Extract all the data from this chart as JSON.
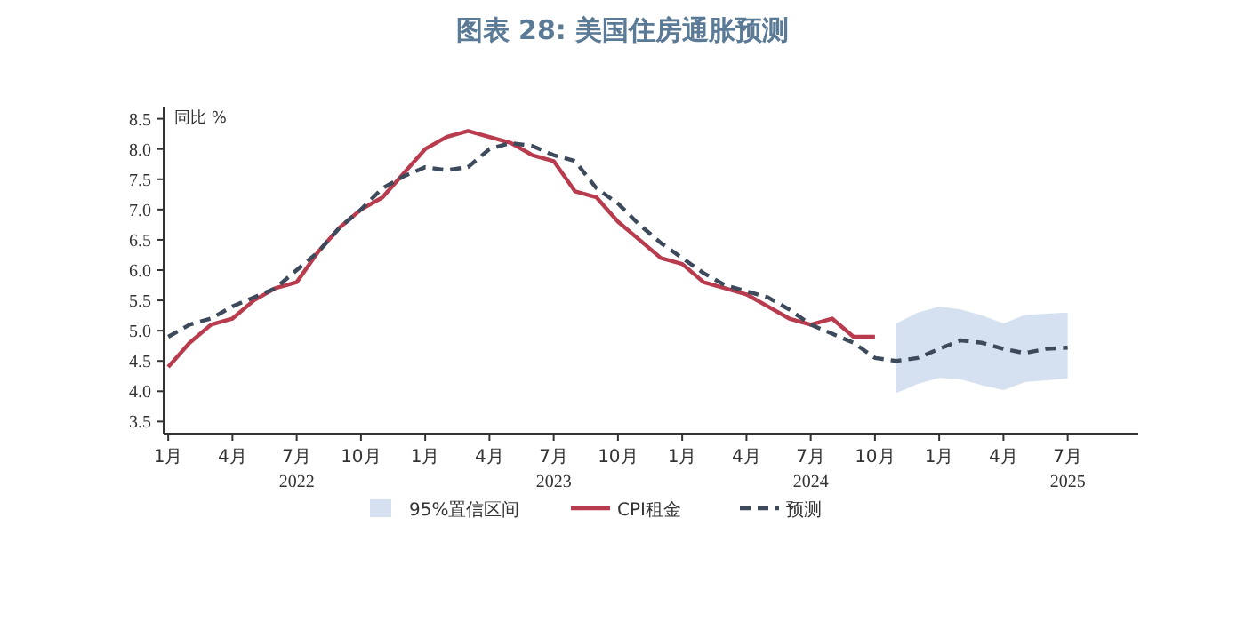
{
  "chart_data": {
    "type": "line",
    "title": "图表 28: 美国住房通胀预测",
    "ylabel": "同比 %",
    "xlim": [
      "2021-12-25",
      "2025-10-10"
    ],
    "ylim": [
      3.3,
      8.7
    ],
    "xticks": [
      {
        "value": "2022-01",
        "label": "1月"
      },
      {
        "value": "2022-04",
        "label": "4月"
      },
      {
        "value": "2022-07",
        "label": "7月"
      },
      {
        "value": "2022-10",
        "label": "10月"
      },
      {
        "value": "2023-01",
        "label": "1月"
      },
      {
        "value": "2023-04",
        "label": "4月"
      },
      {
        "value": "2023-07",
        "label": "7月"
      },
      {
        "value": "2023-10",
        "label": "10月"
      },
      {
        "value": "2024-01",
        "label": "1月"
      },
      {
        "value": "2024-04",
        "label": "4月"
      },
      {
        "value": "2024-07",
        "label": "7月"
      },
      {
        "value": "2024-10",
        "label": "10月"
      },
      {
        "value": "2025-01",
        "label": "1月"
      },
      {
        "value": "2025-04",
        "label": "4月"
      },
      {
        "value": "2025-07",
        "label": "7月"
      }
    ],
    "yticks": [
      {
        "value": 3.5,
        "label": "3.5"
      },
      {
        "value": 4,
        "label": "4.0"
      },
      {
        "value": 4.5,
        "label": "4.5"
      },
      {
        "value": 5,
        "label": "5.0"
      },
      {
        "value": 5.5,
        "label": "5.5"
      },
      {
        "value": 6,
        "label": "6.0"
      },
      {
        "value": 6.5,
        "label": "6.5"
      },
      {
        "value": 7,
        "label": "7.0"
      },
      {
        "value": 7.5,
        "label": "7.5"
      },
      {
        "value": 8,
        "label": "8.0"
      },
      {
        "value": 8.5,
        "label": "8.5"
      }
    ],
    "annotations": [
      "2022",
      "2023",
      "2024",
      "2025"
    ],
    "legend": "bottom",
    "grid": false,
    "series": [
      {
        "name": "95%置信区间",
        "type": "area",
        "color": "#d5e1f0",
        "x": [
          "2024-11",
          "2024-12",
          "2025-01",
          "2025-02",
          "2025-03",
          "2025-04",
          "2025-05",
          "2025-06",
          "2025-07"
        ],
        "values": [
          null,
          null,
          null,
          null,
          null,
          null,
          null,
          null,
          null
        ],
        "upper": [
          5.12,
          5.3,
          5.4,
          5.35,
          5.25,
          5.12,
          5.26,
          5.28,
          5.3
        ],
        "lower": [
          3.97,
          4.12,
          4.22,
          4.2,
          4.1,
          4.02,
          4.15,
          4.18,
          4.21
        ]
      },
      {
        "name": "CPI租金",
        "type": "line",
        "line_style": "solid",
        "color": "#b83b4e",
        "x": [
          "2022-01",
          "2022-02",
          "2022-03",
          "2022-04",
          "2022-05",
          "2022-06",
          "2022-07",
          "2022-08",
          "2022-09",
          "2022-10",
          "2022-11",
          "2022-12",
          "2023-01",
          "2023-02",
          "2023-03",
          "2023-04",
          "2023-05",
          "2023-06",
          "2023-07",
          "2023-08",
          "2023-09",
          "2023-10",
          "2023-11",
          "2023-12",
          "2024-01",
          "2024-02",
          "2024-03",
          "2024-04",
          "2024-05",
          "2024-06",
          "2024-07",
          "2024-08",
          "2024-09",
          "2024-10"
        ],
        "values": [
          4.4,
          4.8,
          5.1,
          5.2,
          5.5,
          5.7,
          5.8,
          6.3,
          6.7,
          7.0,
          7.2,
          7.6,
          8.0,
          8.2,
          8.3,
          8.2,
          8.1,
          7.9,
          7.8,
          7.3,
          7.2,
          6.8,
          6.5,
          6.2,
          6.1,
          5.8,
          5.7,
          5.6,
          5.4,
          5.2,
          5.1,
          5.2,
          4.9,
          4.9
        ]
      },
      {
        "name": "预测",
        "type": "line",
        "line_style": "dashed",
        "color": "#3d4a5c",
        "x": [
          "2022-01",
          "2022-02",
          "2022-03",
          "2022-04",
          "2022-05",
          "2022-06",
          "2022-07",
          "2022-08",
          "2022-09",
          "2022-10",
          "2022-11",
          "2022-12",
          "2023-01",
          "2023-02",
          "2023-03",
          "2023-04",
          "2023-05",
          "2023-06",
          "2023-07",
          "2023-08",
          "2023-09",
          "2023-10",
          "2023-11",
          "2023-12",
          "2024-01",
          "2024-02",
          "2024-03",
          "2024-04",
          "2024-05",
          "2024-06",
          "2024-07",
          "2024-08",
          "2024-09",
          "2024-10",
          "2024-11",
          "2024-12",
          "2025-01",
          "2025-02",
          "2025-03",
          "2025-04",
          "2025-05",
          "2025-06",
          "2025-07"
        ],
        "values": [
          4.9,
          5.1,
          5.2,
          5.4,
          5.55,
          5.7,
          6.0,
          6.3,
          6.7,
          7.0,
          7.35,
          7.55,
          7.7,
          7.65,
          7.7,
          8.0,
          8.1,
          8.05,
          7.9,
          7.8,
          7.35,
          7.1,
          6.75,
          6.45,
          6.2,
          5.95,
          5.75,
          5.65,
          5.55,
          5.35,
          5.1,
          4.95,
          4.8,
          4.55,
          4.5,
          4.55,
          4.7,
          4.84,
          4.8,
          4.7,
          4.63,
          4.7,
          4.72
        ]
      }
    ]
  }
}
